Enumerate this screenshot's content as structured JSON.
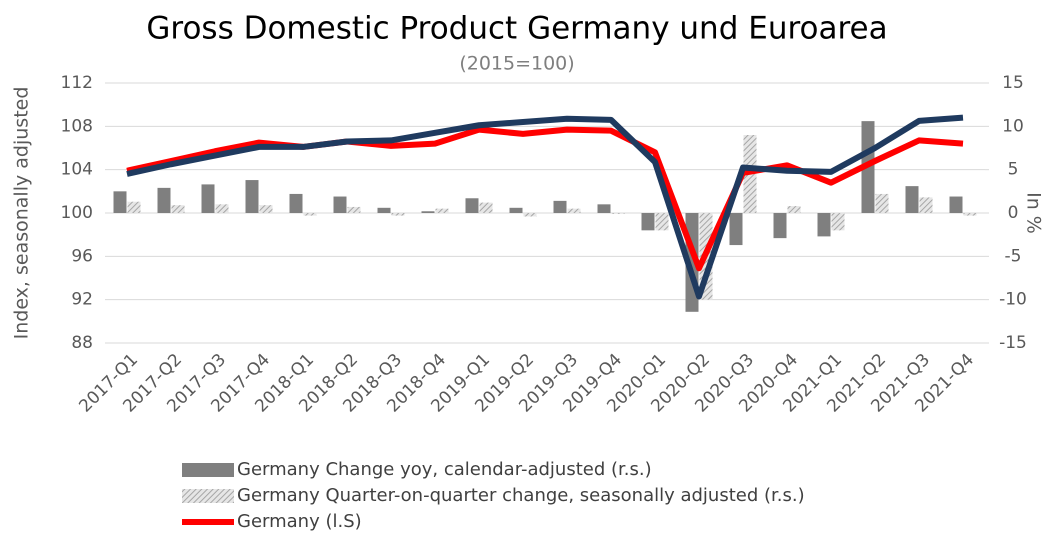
{
  "chart_data": {
    "type": "combo",
    "title": "Gross Domestic Product Germany und Euroarea",
    "subtitle": "(2015=100)",
    "y_label": "Index, seasonally adjusted",
    "y2_label": "In %",
    "categories": [
      "2017-Q1",
      "2017-Q2",
      "2017-Q3",
      "2017-Q4",
      "2018-Q1",
      "2018-Q2",
      "2018-Q3",
      "2018-Q4",
      "2019-Q1",
      "2019-Q2",
      "2019-Q3",
      "2019-Q4",
      "2020-Q1",
      "2020-Q2",
      "2020-Q3",
      "2020-Q4",
      "2021-Q1",
      "2021-Q2",
      "2021-Q3",
      "2021-Q4"
    ],
    "ylim": [
      88,
      112
    ],
    "yticks": [
      88,
      92,
      96,
      100,
      104,
      108,
      112
    ],
    "y2lim": [
      -15,
      15
    ],
    "y2ticks": [
      -15,
      -10,
      -5,
      0,
      5,
      10,
      15
    ],
    "series": [
      {
        "name": "Germany Change yoy, calendar-adjusted (r.s.)",
        "type": "bar",
        "axis": "y2",
        "color": "#7f7f7f",
        "values": [
          2.5,
          2.9,
          3.3,
          3.8,
          2.2,
          1.9,
          0.6,
          0.2,
          1.7,
          0.6,
          1.4,
          1.0,
          -2.0,
          -11.4,
          -3.7,
          -2.9,
          -2.7,
          10.6,
          3.1,
          1.9
        ]
      },
      {
        "name": "Germany Quarter-on-quarter change, seasonally adjusted (r.s.)",
        "type": "bar",
        "axis": "y2",
        "color": "#c8c8c8",
        "hatch": true,
        "values": [
          1.3,
          0.9,
          1.0,
          0.9,
          -0.3,
          0.7,
          -0.3,
          0.5,
          1.2,
          -0.4,
          0.5,
          -0.1,
          -2.0,
          -10.0,
          9.0,
          0.8,
          -2.0,
          2.2,
          1.8,
          -0.3
        ]
      },
      {
        "name": "Germany (l.S)",
        "type": "line",
        "color": "#ff0000",
        "values": [
          103.9,
          104.8,
          105.7,
          106.5,
          106.1,
          106.6,
          106.2,
          106.4,
          107.7,
          107.3,
          107.7,
          107.6,
          105.6,
          94.9,
          103.7,
          104.4,
          102.8,
          104.8,
          106.7,
          106.4
        ]
      },
      {
        "type": "line",
        "color": "#1f3a5f",
        "values": [
          103.6,
          104.5,
          105.3,
          106.1,
          106.1,
          106.6,
          106.7,
          107.4,
          108.1,
          108.4,
          108.7,
          108.6,
          104.7,
          92.3,
          104.2,
          103.9,
          103.8,
          106.0,
          108.5,
          108.8
        ]
      }
    ]
  }
}
